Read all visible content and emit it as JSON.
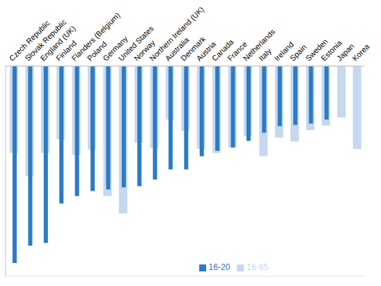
{
  "chart_data": {
    "type": "bar",
    "categories": [
      "Czech Republic",
      "Slovak Republic",
      "England (UK)",
      "Finland",
      "Flanders (Belgium)",
      "Poland",
      "Germany",
      "United States",
      "Norway",
      "Northern Ireland (UK)",
      "Australia",
      "Denmark",
      "Austria",
      "Canada",
      "France",
      "Netherlands",
      "Italy",
      "Ireland",
      "Spain",
      "Sweden",
      "Estonia",
      "Japan",
      "Korea"
    ],
    "series": [
      {
        "name": "16-65",
        "color": "#c6d8f0",
        "values": [
          -28.9,
          -36.7,
          -28.9,
          -24.4,
          -29.6,
          -27.8,
          -43.3,
          -49.1,
          -25.6,
          -27.3,
          -17.8,
          -21.6,
          -27.6,
          -28.9,
          -27.1,
          -23.3,
          -30,
          -23.8,
          -25.1,
          -21.3,
          -19.8,
          -17.1,
          -27.6
        ]
      },
      {
        "name": "16-20",
        "color": "#2b7bc5",
        "values": [
          -65.6,
          -59.8,
          -58.9,
          -45.8,
          -43.3,
          -41.6,
          -41.1,
          -40.4,
          -40,
          -37.8,
          -34.4,
          -34.4,
          -30,
          -28.2,
          -27.1,
          -24.9,
          -22.2,
          -20,
          -19.6,
          -19.1,
          -17.8,
          null,
          null
        ]
      }
    ],
    "ylim": [
      -70,
      0
    ],
    "yticks": [
      -70,
      -60,
      -50,
      -40,
      -30,
      -20,
      -10,
      0
    ],
    "grid": true,
    "tick_labels": "x",
    "legend": "bottom right"
  }
}
